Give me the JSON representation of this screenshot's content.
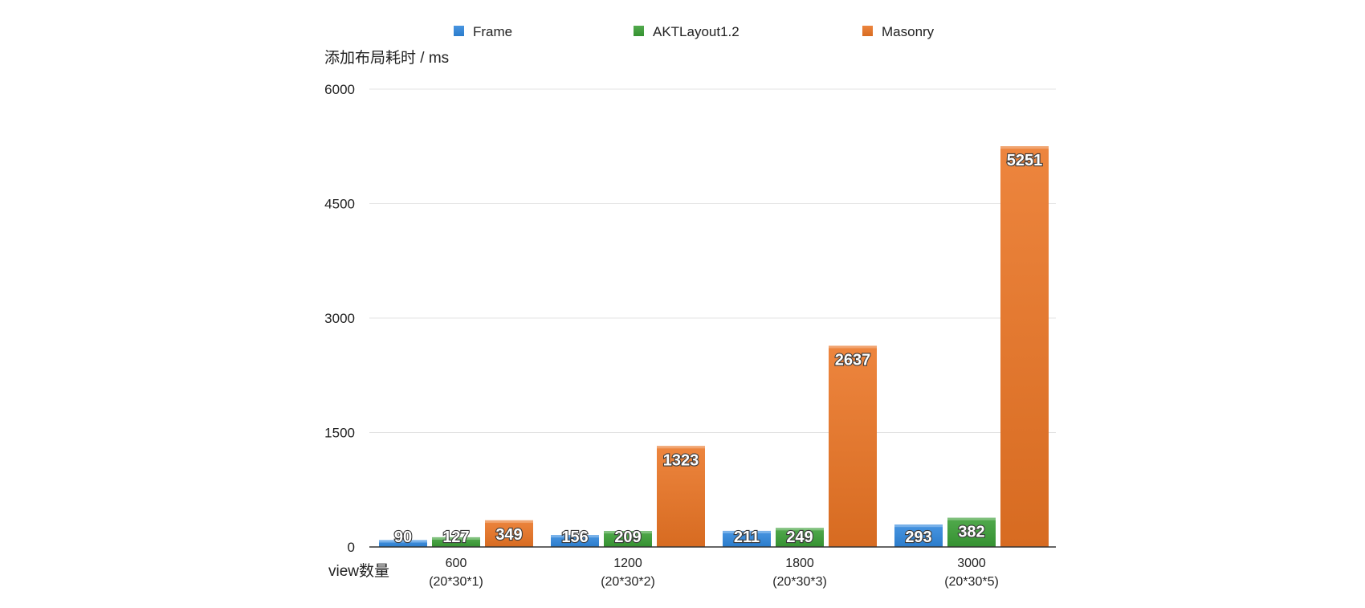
{
  "chart_data": {
    "type": "bar",
    "ylabel": "添加布局耗时 / ms",
    "xlabel": "view数量",
    "ylim": [
      0,
      6000
    ],
    "yticks": [
      0,
      1500,
      3000,
      4500,
      6000
    ],
    "grid": true,
    "legend_position": "top",
    "categories": [
      {
        "line1": "600",
        "line2": "(20*30*1)"
      },
      {
        "line1": "1200",
        "line2": "(20*30*2)"
      },
      {
        "line1": "1800",
        "line2": "(20*30*3)"
      },
      {
        "line1": "3000",
        "line2": "(20*30*5)"
      }
    ],
    "series": [
      {
        "name": "Frame",
        "color": "#2f87dd",
        "values": [
          90,
          156,
          211,
          293
        ]
      },
      {
        "name": "AKTLayout1.2",
        "color": "#3a9e35",
        "values": [
          127,
          209,
          249,
          382
        ]
      },
      {
        "name": "Masonry",
        "color": "#ea7424",
        "values": [
          349,
          1323,
          2637,
          5251
        ]
      }
    ]
  }
}
